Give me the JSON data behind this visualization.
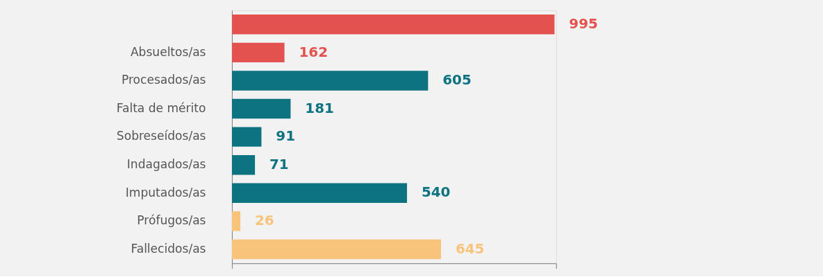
{
  "chart_data": {
    "type": "bar",
    "orientation": "horizontal",
    "categories": [
      null,
      "Absueltos/as",
      "Procesados/as",
      "Falta de mérito",
      "Sobreseídos/as",
      "Indagados/as",
      "Imputados/as",
      "Prófugos/as",
      "Fallecidos/as"
    ],
    "values": [
      995,
      162,
      605,
      181,
      91,
      71,
      540,
      26,
      645
    ],
    "colors": [
      "#e4524f",
      "#e4524f",
      "#0e7380",
      "#0e7380",
      "#0e7380",
      "#0e7380",
      "#0e7380",
      "#f8c47c",
      "#f8c47c"
    ],
    "xlim": [
      0,
      1000
    ],
    "xticks": [
      {
        "value": 0,
        "label": null
      },
      {
        "value": 1000,
        "label": null
      }
    ],
    "data_labels": true,
    "tick_labels": "y"
  }
}
